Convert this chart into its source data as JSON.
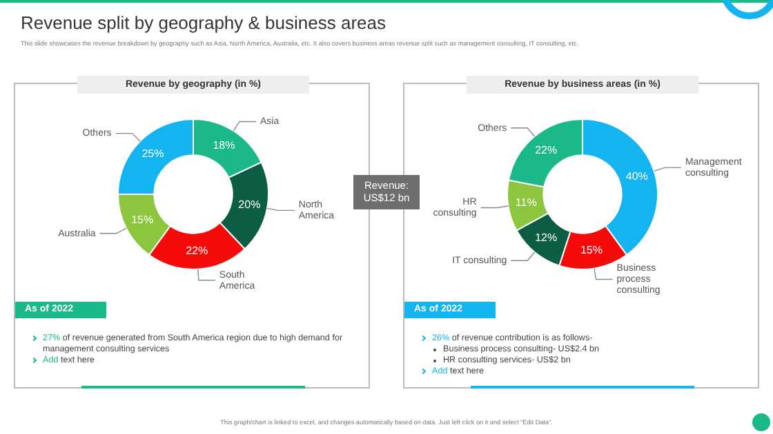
{
  "chart_data": [
    {
      "type": "donut",
      "title": "Revenue by geography (in %)",
      "categories": [
        "Asia",
        "North America",
        "South America",
        "Australia",
        "Others"
      ],
      "values": [
        18,
        20,
        22,
        15,
        25
      ],
      "colors": [
        "#1bb98a",
        "#0d5c44",
        "#f50a0a",
        "#8cc63f",
        "#14b4f0"
      ],
      "value_labels": [
        "18%",
        "20%",
        "22%",
        "15%",
        "25%"
      ],
      "annotations": [
        "Revenue split by geography & business areas",
        "This slide showcases the revenue breakdown by geography such as Asia, North America, Australia, etc. It also covers business areas revenue split such as management consulting, IT consulting, etc.",
        "Revenue: US$12 bn",
        "As of 2022",
        "27% of revenue generated from South America region due to high demand for management consulting services",
        "Add text here",
        "This graph/chart is linked to excel, and changes automatically based on data. Just left click on it and select “Edit Data”."
      ]
    },
    {
      "type": "donut",
      "title": "Revenue by business areas (in %)",
      "categories": [
        "Management consulting",
        "Business process consulting",
        "IT consulting",
        "HR consulting",
        "Others"
      ],
      "values": [
        40,
        15,
        12,
        11,
        22
      ],
      "colors": [
        "#14b4f0",
        "#f50a0a",
        "#0d5c44",
        "#8cc63f",
        "#1bb98a"
      ],
      "value_labels": [
        "40%",
        "15%",
        "12%",
        "11%",
        "22%"
      ],
      "annotations": [
        "As of 2022",
        "26% of revenue contribution is as follows-",
        "Business process consulting- US$2.4 bn",
        "HR consulting services- US$2 bn",
        "Add text here"
      ]
    }
  ]
}
